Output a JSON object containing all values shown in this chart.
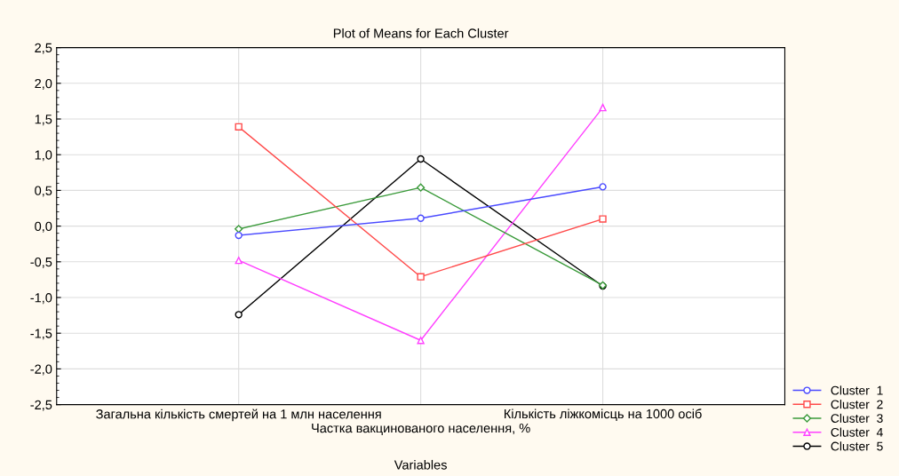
{
  "chart_data": {
    "type": "line",
    "title": "Plot of Means for Each Cluster",
    "xlabel": "Variables",
    "categories": [
      "Загальна кількість смертей на 1 млн населення",
      "Частка вакцинованого населення, %",
      "Кількість ліжкомісць на 1000 осіб"
    ],
    "series": [
      {
        "name": "Cluster  1",
        "color": "#4a4aff",
        "marker": "circle",
        "values": [
          -0.13,
          0.11,
          0.55
        ]
      },
      {
        "name": "Cluster  2",
        "color": "#ff4a4a",
        "marker": "square",
        "values": [
          1.39,
          -0.71,
          0.1
        ]
      },
      {
        "name": "Cluster  3",
        "color": "#3a9a3a",
        "marker": "diamond",
        "values": [
          -0.04,
          0.54,
          -0.83
        ]
      },
      {
        "name": "Cluster  4",
        "color": "#ff40ff",
        "marker": "triangle",
        "values": [
          -0.48,
          -1.6,
          1.66
        ]
      },
      {
        "name": "Cluster  5",
        "color": "#000000",
        "marker": "circle",
        "values": [
          -1.24,
          0.94,
          -0.84
        ]
      }
    ],
    "ylim": [
      -2.5,
      2.5
    ],
    "yticks": [
      {
        "value": -2.5,
        "label": "-2,5"
      },
      {
        "value": -2.0,
        "label": "-2,0"
      },
      {
        "value": -1.5,
        "label": "-1,5"
      },
      {
        "value": -1.0,
        "label": "-1,0"
      },
      {
        "value": -0.5,
        "label": "-0,5"
      },
      {
        "value": 0,
        "label": "0,0"
      },
      {
        "value": 0.5,
        "label": "0,5"
      },
      {
        "value": 1.0,
        "label": "1,0"
      },
      {
        "value": 1.5,
        "label": "1,5"
      },
      {
        "value": 2.0,
        "label": "2,0"
      },
      {
        "value": 2.5,
        "label": "2,5"
      }
    ],
    "grid": true,
    "legend": "bottom right",
    "line_style": "solid"
  }
}
